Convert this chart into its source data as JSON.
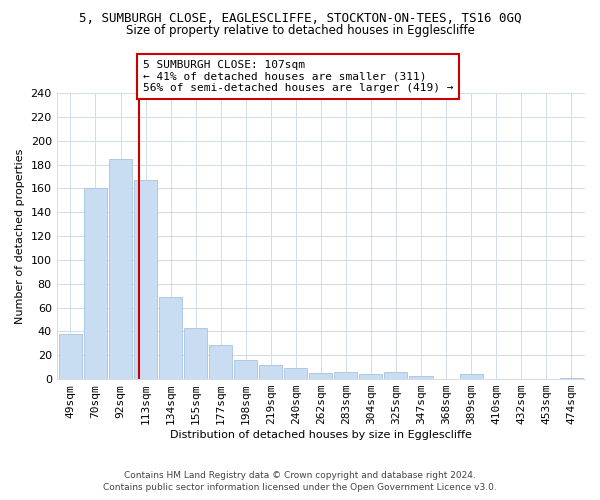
{
  "title": "5, SUMBURGH CLOSE, EAGLESCLIFFE, STOCKTON-ON-TEES, TS16 0GQ",
  "subtitle": "Size of property relative to detached houses in Egglescliffe",
  "xlabel": "Distribution of detached houses by size in Egglescliffe",
  "ylabel": "Number of detached properties",
  "bar_labels": [
    "49sqm",
    "70sqm",
    "92sqm",
    "113sqm",
    "134sqm",
    "155sqm",
    "177sqm",
    "198sqm",
    "219sqm",
    "240sqm",
    "262sqm",
    "283sqm",
    "304sqm",
    "325sqm",
    "347sqm",
    "368sqm",
    "389sqm",
    "410sqm",
    "432sqm",
    "453sqm",
    "474sqm"
  ],
  "bar_values": [
    38,
    160,
    185,
    167,
    69,
    43,
    29,
    16,
    12,
    9,
    5,
    6,
    4,
    6,
    3,
    0,
    4,
    0,
    0,
    0,
    1
  ],
  "bar_color": "#c9ddf2",
  "bar_edge_color": "#a8c4e0",
  "property_line_label": "5 SUMBURGH CLOSE: 107sqm",
  "annotation_line1": "← 41% of detached houses are smaller (311)",
  "annotation_line2": "56% of semi-detached houses are larger (419) →",
  "vline_color": "#cc0000",
  "vline_x": 2.75,
  "ylim": [
    0,
    240
  ],
  "yticks": [
    0,
    20,
    40,
    60,
    80,
    100,
    120,
    140,
    160,
    180,
    200,
    220,
    240
  ],
  "box_color": "#cc0000",
  "footer1": "Contains HM Land Registry data © Crown copyright and database right 2024.",
  "footer2": "Contains public sector information licensed under the Open Government Licence v3.0.",
  "bg_color": "#ffffff",
  "grid_color": "#d0dce8"
}
